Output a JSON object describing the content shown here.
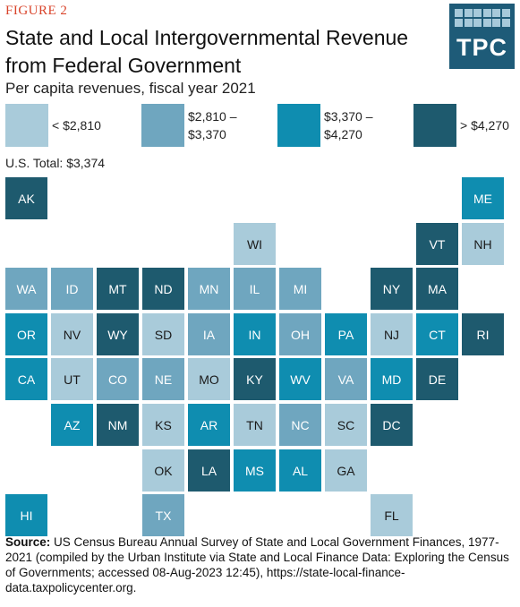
{
  "figure_label": "FIGURE 2",
  "title": "State and Local Intergovernmental Revenue from Federal Government",
  "subtitle": "Per capita revenues, fiscal year 2021",
  "logo_text": "TPC",
  "us_total": "U.S. Total: $3,374",
  "colors": {
    "bin1": "#a9cbda",
    "bin2": "#6fa6bf",
    "bin3": "#0f8db0",
    "bin4": "#1e5a6e",
    "logo": "#1e5b78",
    "figure_label": "#d9442b"
  },
  "legend": [
    {
      "line1": "< $2,810",
      "line2": "",
      "bin": "bin1"
    },
    {
      "line1": "$2,810 –",
      "line2": "$3,370",
      "bin": "bin2"
    },
    {
      "line1": "$3,370 –",
      "line2": "$4,270",
      "bin": "bin3"
    },
    {
      "line1": "> $4,270",
      "line2": "",
      "bin": "bin4"
    }
  ],
  "chart_data": {
    "type": "tile-map choropleth",
    "legend_bins": [
      "< $2,810",
      "$2,810 – $3,370",
      "$3,370 – $4,270",
      "> $4,270"
    ],
    "states": [
      {
        "abbr": "AK",
        "bin": "bin4",
        "col": 0,
        "row": 0
      },
      {
        "abbr": "ME",
        "bin": "bin3",
        "col": 10,
        "row": 0
      },
      {
        "abbr": "WI",
        "bin": "bin1",
        "col": 5,
        "row": 1
      },
      {
        "abbr": "VT",
        "bin": "bin4",
        "col": 9,
        "row": 1
      },
      {
        "abbr": "NH",
        "bin": "bin1",
        "col": 10,
        "row": 1
      },
      {
        "abbr": "WA",
        "bin": "bin2",
        "col": 0,
        "row": 2
      },
      {
        "abbr": "ID",
        "bin": "bin2",
        "col": 1,
        "row": 2
      },
      {
        "abbr": "MT",
        "bin": "bin4",
        "col": 2,
        "row": 2
      },
      {
        "abbr": "ND",
        "bin": "bin4",
        "col": 3,
        "row": 2
      },
      {
        "abbr": "MN",
        "bin": "bin2",
        "col": 4,
        "row": 2
      },
      {
        "abbr": "IL",
        "bin": "bin2",
        "col": 5,
        "row": 2
      },
      {
        "abbr": "MI",
        "bin": "bin2",
        "col": 6,
        "row": 2
      },
      {
        "abbr": "NY",
        "bin": "bin4",
        "col": 8,
        "row": 2
      },
      {
        "abbr": "MA",
        "bin": "bin4",
        "col": 9,
        "row": 2
      },
      {
        "abbr": "OR",
        "bin": "bin3",
        "col": 0,
        "row": 3
      },
      {
        "abbr": "NV",
        "bin": "bin1",
        "col": 1,
        "row": 3
      },
      {
        "abbr": "WY",
        "bin": "bin4",
        "col": 2,
        "row": 3
      },
      {
        "abbr": "SD",
        "bin": "bin1",
        "col": 3,
        "row": 3
      },
      {
        "abbr": "IA",
        "bin": "bin2",
        "col": 4,
        "row": 3
      },
      {
        "abbr": "IN",
        "bin": "bin3",
        "col": 5,
        "row": 3
      },
      {
        "abbr": "OH",
        "bin": "bin2",
        "col": 6,
        "row": 3
      },
      {
        "abbr": "PA",
        "bin": "bin3",
        "col": 7,
        "row": 3
      },
      {
        "abbr": "NJ",
        "bin": "bin1",
        "col": 8,
        "row": 3
      },
      {
        "abbr": "CT",
        "bin": "bin3",
        "col": 9,
        "row": 3
      },
      {
        "abbr": "RI",
        "bin": "bin4",
        "col": 10,
        "row": 3
      },
      {
        "abbr": "CA",
        "bin": "bin3",
        "col": 0,
        "row": 4
      },
      {
        "abbr": "UT",
        "bin": "bin1",
        "col": 1,
        "row": 4
      },
      {
        "abbr": "CO",
        "bin": "bin2",
        "col": 2,
        "row": 4
      },
      {
        "abbr": "NE",
        "bin": "bin2",
        "col": 3,
        "row": 4
      },
      {
        "abbr": "MO",
        "bin": "bin1",
        "col": 4,
        "row": 4
      },
      {
        "abbr": "KY",
        "bin": "bin4",
        "col": 5,
        "row": 4
      },
      {
        "abbr": "WV",
        "bin": "bin3",
        "col": 6,
        "row": 4
      },
      {
        "abbr": "VA",
        "bin": "bin2",
        "col": 7,
        "row": 4
      },
      {
        "abbr": "MD",
        "bin": "bin3",
        "col": 8,
        "row": 4
      },
      {
        "abbr": "DE",
        "bin": "bin4",
        "col": 9,
        "row": 4
      },
      {
        "abbr": "AZ",
        "bin": "bin3",
        "col": 1,
        "row": 5
      },
      {
        "abbr": "NM",
        "bin": "bin4",
        "col": 2,
        "row": 5
      },
      {
        "abbr": "KS",
        "bin": "bin1",
        "col": 3,
        "row": 5
      },
      {
        "abbr": "AR",
        "bin": "bin3",
        "col": 4,
        "row": 5
      },
      {
        "abbr": "TN",
        "bin": "bin1",
        "col": 5,
        "row": 5
      },
      {
        "abbr": "NC",
        "bin": "bin2",
        "col": 6,
        "row": 5
      },
      {
        "abbr": "SC",
        "bin": "bin1",
        "col": 7,
        "row": 5
      },
      {
        "abbr": "DC",
        "bin": "bin4",
        "col": 8,
        "row": 5
      },
      {
        "abbr": "OK",
        "bin": "bin1",
        "col": 3,
        "row": 6
      },
      {
        "abbr": "LA",
        "bin": "bin4",
        "col": 4,
        "row": 6
      },
      {
        "abbr": "MS",
        "bin": "bin3",
        "col": 5,
        "row": 6
      },
      {
        "abbr": "AL",
        "bin": "bin3",
        "col": 6,
        "row": 6
      },
      {
        "abbr": "GA",
        "bin": "bin1",
        "col": 7,
        "row": 6
      },
      {
        "abbr": "HI",
        "bin": "bin3",
        "col": 0,
        "row": 7
      },
      {
        "abbr": "TX",
        "bin": "bin2",
        "col": 3,
        "row": 7
      },
      {
        "abbr": "FL",
        "bin": "bin1",
        "col": 8,
        "row": 7
      }
    ]
  },
  "source": {
    "label": "Source:",
    "text": " US Census Bureau Annual Survey of State and Local Government Finances, 1977-2021 (compiled by the Urban Institute via State and Local Finance Data: Exploring the Census of Governments; accessed 08-Aug-2023 12:45), https://state-local-finance-data.taxpolicycenter.org."
  }
}
